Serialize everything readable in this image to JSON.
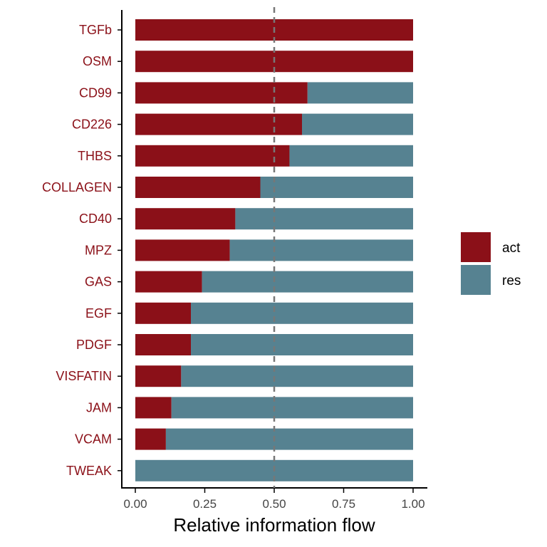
{
  "chart_data": {
    "type": "bar",
    "orientation": "horizontal",
    "stacked": true,
    "categories": [
      "TGFb",
      "OSM",
      "CD99",
      "CD226",
      "THBS",
      "COLLAGEN",
      "CD40",
      "MPZ",
      "GAS",
      "EGF",
      "PDGF",
      "VISFATIN",
      "JAM",
      "VCAM",
      "TWEAK"
    ],
    "series": [
      {
        "name": "act",
        "color": "#8B1018",
        "values": [
          1.0,
          1.0,
          0.62,
          0.6,
          0.555,
          0.45,
          0.36,
          0.34,
          0.24,
          0.2,
          0.2,
          0.165,
          0.13,
          0.11,
          0.0
        ]
      },
      {
        "name": "res",
        "color": "#568291",
        "values": [
          0.0,
          0.0,
          0.38,
          0.4,
          0.445,
          0.55,
          0.64,
          0.66,
          0.76,
          0.8,
          0.8,
          0.835,
          0.87,
          0.89,
          1.0
        ]
      }
    ],
    "xlabel": "Relative information flow",
    "ylabel": "",
    "xlim": [
      0,
      1
    ],
    "x_ticks": [
      "0.00",
      "0.25",
      "0.50",
      "0.75",
      "1.00"
    ],
    "reference_line": {
      "x": 0.5,
      "style": "dashed",
      "color": "#777777"
    },
    "category_label_color": "#8B1018",
    "grid": false,
    "legend": {
      "position": "right",
      "entries": [
        "act",
        "res"
      ]
    }
  }
}
